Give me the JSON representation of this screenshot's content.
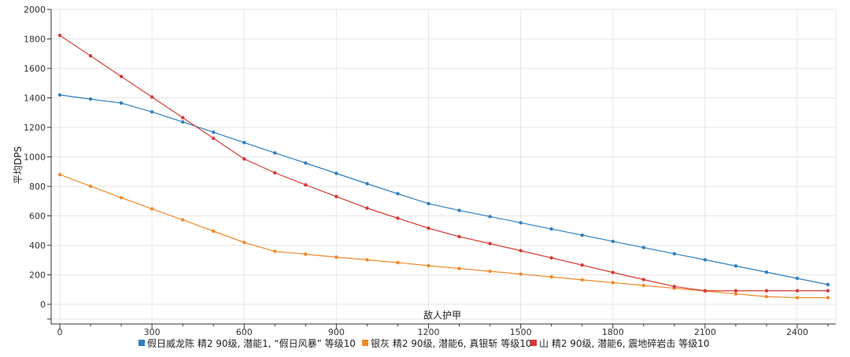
{
  "chart_data": {
    "type": "line",
    "xlabel": "敌人护甲",
    "ylabel": "平均DPS",
    "xlim": [
      -30,
      2500
    ],
    "ylim": [
      -100,
      2000
    ],
    "x_ticks": [
      0,
      300,
      600,
      900,
      1200,
      1500,
      1800,
      2100,
      2400
    ],
    "y_ticks": [
      0,
      200,
      400,
      600,
      800,
      1000,
      1200,
      1400,
      1600,
      1800,
      2000
    ],
    "grid": true,
    "legend_position": "bottom",
    "x": [
      0,
      100,
      200,
      300,
      400,
      500,
      600,
      700,
      800,
      900,
      1000,
      1100,
      1200,
      1300,
      1400,
      1500,
      1600,
      1700,
      1800,
      1900,
      2000,
      2100,
      2200,
      2300,
      2400,
      2500
    ],
    "series": [
      {
        "name": "假日威龙陈 精2 90级, 潜能1, “假日风暴” 等级10",
        "color": "#2f7fbf",
        "values": [
          1420,
          1392,
          1365,
          1305,
          1237,
          1167,
          1097,
          1027,
          958,
          888,
          818,
          750,
          683,
          637,
          595,
          553,
          511,
          469,
          427,
          385,
          343,
          302,
          260,
          218,
          176,
          134
        ]
      },
      {
        "name": "银灰 精2 90级, 潜能6, 真银斩 等级10",
        "color": "#f0892a",
        "values": [
          880,
          801,
          723,
          647,
          573,
          496,
          420,
          359,
          340,
          320,
          302,
          283,
          262,
          243,
          224,
          205,
          186,
          166,
          147,
          128,
          109,
          90,
          71,
          52,
          45,
          45
        ]
      },
      {
        "name": "山 精2 90级, 潜能6, 震地碎岩击 等级10",
        "color": "#d63a35",
        "values": [
          1824,
          1685,
          1545,
          1406,
          1266,
          1126,
          986,
          892,
          810,
          731,
          652,
          584,
          516,
          459,
          412,
          364,
          315,
          266,
          216,
          168,
          121,
          92,
          92,
          92,
          92,
          92
        ]
      }
    ]
  }
}
